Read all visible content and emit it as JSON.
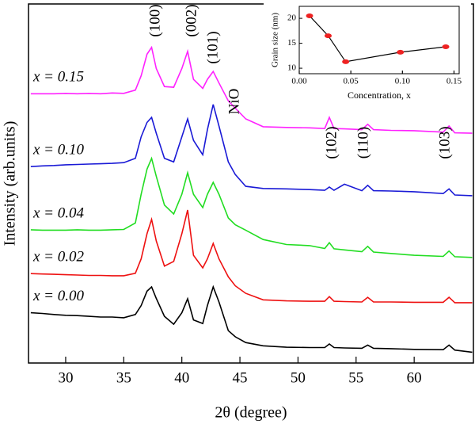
{
  "chart_data": [
    {
      "type": "line",
      "xlabel": "2θ (degree)",
      "ylabel": "Intensity (arb.units)",
      "xlim": [
        26.8,
        65.1
      ],
      "xticks": [
        30,
        35,
        40,
        45,
        50,
        55,
        60
      ],
      "ylim": [
        0,
        100
      ],
      "annotations": [
        "(100)",
        "(002)",
        "(101)",
        "NiO",
        "(102)",
        "(110)",
        "(103)"
      ],
      "x": [
        27,
        28,
        29,
        30,
        31,
        32,
        33,
        34,
        35,
        36,
        36.5,
        37,
        37.4,
        37.8,
        38.5,
        39.3,
        40,
        40.5,
        41,
        41.8,
        42.2,
        42.7,
        43.2,
        44,
        44.6,
        45.5,
        47,
        49,
        51,
        52.3,
        52.7,
        53.1,
        54,
        55.5,
        56,
        56.5,
        58,
        60,
        62.5,
        63,
        63.5,
        65
      ],
      "series": [
        {
          "name": "x = 0.00",
          "color": "#000000",
          "values": [
            14,
            13.8,
            13.5,
            13.3,
            13.2,
            13,
            12.8,
            12.8,
            12.6,
            13.5,
            16,
            20,
            21.2,
            18,
            13,
            10.8,
            14,
            17.9,
            12,
            11,
            16,
            21.2,
            17,
            9,
            7.3,
            5.7,
            4.8,
            4.4,
            4.3,
            4.3,
            5.3,
            4.3,
            4.2,
            4.1,
            5,
            4.1,
            4,
            3.8,
            3.7,
            5,
            3.6,
            3
          ]
        },
        {
          "name": "x = 0.02",
          "color": "#ee1111",
          "values": [
            24.9,
            24.8,
            24.7,
            24.6,
            24.5,
            24.4,
            24.4,
            24.3,
            24.3,
            25,
            29,
            36,
            40,
            34,
            27,
            28.3,
            36,
            42.6,
            30,
            26.5,
            29,
            33.3,
            29,
            24,
            21.5,
            19.4,
            17.6,
            17.3,
            17.2,
            17.2,
            18.5,
            17.2,
            17.1,
            17,
            18.3,
            17,
            17,
            16.9,
            16.9,
            18.3,
            16.8,
            16.8
          ]
        },
        {
          "name": "x = 0.04",
          "color": "#22dd22",
          "values": [
            37.1,
            37,
            37,
            37,
            37.1,
            37,
            37,
            37.1,
            37.2,
            39,
            47,
            54,
            57,
            52,
            44,
            41.5,
            47,
            53,
            47,
            43.3,
            47,
            50.3,
            47,
            40.4,
            38.5,
            37,
            34.4,
            33,
            32.7,
            31.9,
            33.5,
            31.8,
            31.5,
            31,
            32.5,
            30.9,
            30.5,
            30,
            29.7,
            31.2,
            29.6,
            29.4
          ]
        },
        {
          "name": "x = 0.10",
          "color": "#1a1ad6",
          "values": [
            54.7,
            54.9,
            55,
            55.2,
            55.3,
            55.4,
            55.5,
            55.6,
            55.8,
            57,
            63,
            67,
            68.4,
            64,
            57,
            56,
            63,
            68,
            62,
            58,
            65,
            72,
            66,
            56,
            52.5,
            49.2,
            48.6,
            48.5,
            48.3,
            48.1,
            49,
            48.1,
            49.8,
            48,
            49.5,
            48,
            47.9,
            47.7,
            47.2,
            48.5,
            46.8,
            46.6
          ]
        },
        {
          "name": "x = 0.15",
          "color": "#ff22ff",
          "values": [
            75,
            75,
            75,
            75.1,
            75,
            75.1,
            75,
            75.2,
            75.1,
            76,
            80,
            86,
            87.9,
            82,
            77,
            76.8,
            82,
            86.8,
            79,
            76.5,
            79,
            81.2,
            78,
            73,
            71,
            68,
            65.8,
            65.6,
            65.5,
            65.3,
            68.4,
            65.3,
            65.2,
            65,
            66.5,
            65,
            64.8,
            64.7,
            64.3,
            66,
            64.1,
            64
          ]
        }
      ]
    },
    {
      "type": "line",
      "xlabel": "Concentration, x",
      "ylabel": "Grain size (nm)",
      "xlim": [
        0,
        0.155
      ],
      "xticks": [
        {
          "value": 0,
          "label": "0.00"
        },
        {
          "value": 0.05,
          "label": "0.05"
        },
        {
          "value": 0.1,
          "label": "0.10"
        },
        {
          "value": 0.15,
          "label": "0.15"
        }
      ],
      "ylim": [
        8.9,
        22.4
      ],
      "yticks": [
        10,
        15,
        20
      ],
      "x": [
        0.01,
        0.028,
        0.045,
        0.098,
        0.142
      ],
      "values": [
        20.5,
        16.5,
        11.3,
        13.2,
        14.3
      ],
      "color": "#000000",
      "marker_color": "#ee2222"
    }
  ]
}
